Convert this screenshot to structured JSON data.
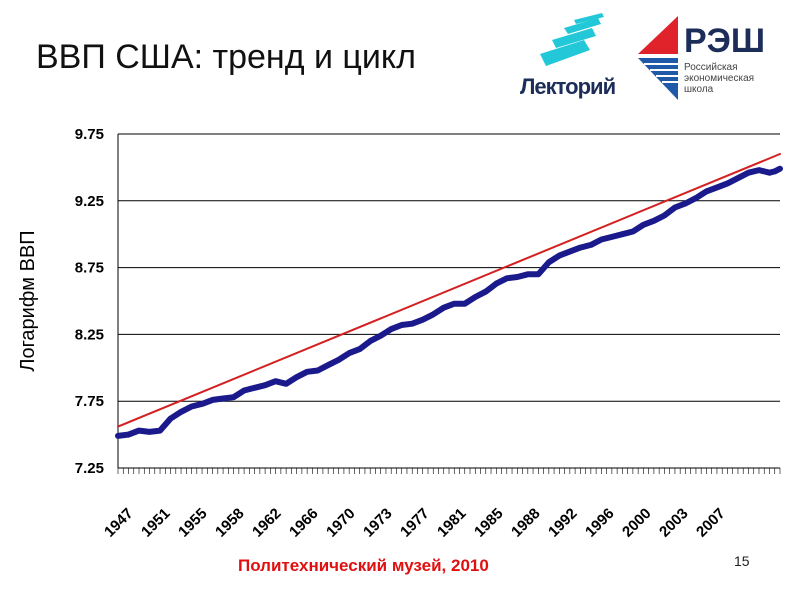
{
  "slide": {
    "title": "ВВП США: тренд и цикл",
    "footer": "Политехнический музей, 2010",
    "page_number": "15"
  },
  "logos": {
    "lektoriy": {
      "text": "Лекторий",
      "accent_color": "#22c8d8"
    },
    "nes": {
      "abbr": "РЭШ",
      "full_lines": [
        "Российская",
        "экономическая",
        "школа"
      ],
      "colors": {
        "red": "#e0232a",
        "blue": "#1f5aa8",
        "navy": "#1d2d5a"
      }
    }
  },
  "chart_data": {
    "type": "line",
    "ylabel": "Логарифм ВВП",
    "xlabel": "",
    "ylim": [
      7.25,
      9.75
    ],
    "yticks": [
      "7.25",
      "7.75",
      "8.25",
      "8.75",
      "9.25",
      "9.75"
    ],
    "xtick_labels": [
      "1947",
      "1951",
      "1955",
      "1958",
      "1962",
      "1966",
      "1970",
      "1973",
      "1977",
      "1981",
      "1985",
      "1988",
      "1992",
      "1996",
      "2000",
      "2003",
      "2007"
    ],
    "xlim": [
      1947,
      2010
    ],
    "grid": "horizontal",
    "legend": "none",
    "series": [
      {
        "kind": "actual",
        "color": "#1a1a8c",
        "x": [
          1947,
          1948,
          1949,
          1950,
          1951,
          1952,
          1953,
          1954,
          1955,
          1956,
          1957,
          1958,
          1959,
          1960,
          1961,
          1962,
          1963,
          1964,
          1965,
          1966,
          1967,
          1968,
          1969,
          1970,
          1971,
          1972,
          1973,
          1974,
          1975,
          1976,
          1977,
          1978,
          1979,
          1980,
          1981,
          1982,
          1983,
          1984,
          1985,
          1986,
          1987,
          1988,
          1989,
          1990,
          1991,
          1992,
          1993,
          1994,
          1995,
          1996,
          1997,
          1998,
          1999,
          2000,
          2001,
          2002,
          2003,
          2004,
          2005,
          2006,
          2007,
          2008,
          2008.5,
          2009,
          2009.5,
          2010
        ],
        "y": [
          7.49,
          7.5,
          7.53,
          7.52,
          7.53,
          7.62,
          7.67,
          7.71,
          7.73,
          7.76,
          7.77,
          7.78,
          7.83,
          7.85,
          7.87,
          7.9,
          7.88,
          7.93,
          7.97,
          7.98,
          8.02,
          8.06,
          8.11,
          8.14,
          8.2,
          8.24,
          8.29,
          8.32,
          8.33,
          8.36,
          8.4,
          8.45,
          8.48,
          8.48,
          8.53,
          8.57,
          8.63,
          8.67,
          8.68,
          8.7,
          8.7,
          8.79,
          8.84,
          8.87,
          8.9,
          8.92,
          8.96,
          8.98,
          9.0,
          9.02,
          9.07,
          9.1,
          9.14,
          9.2,
          9.23,
          9.27,
          9.32,
          9.35,
          9.38,
          9.42,
          9.46,
          9.48,
          9.47,
          9.46,
          9.47,
          9.49
        ]
      },
      {
        "kind": "trend",
        "color": "#d42020",
        "x": [
          1947,
          2010
        ],
        "y": [
          7.56,
          9.6
        ]
      }
    ]
  }
}
